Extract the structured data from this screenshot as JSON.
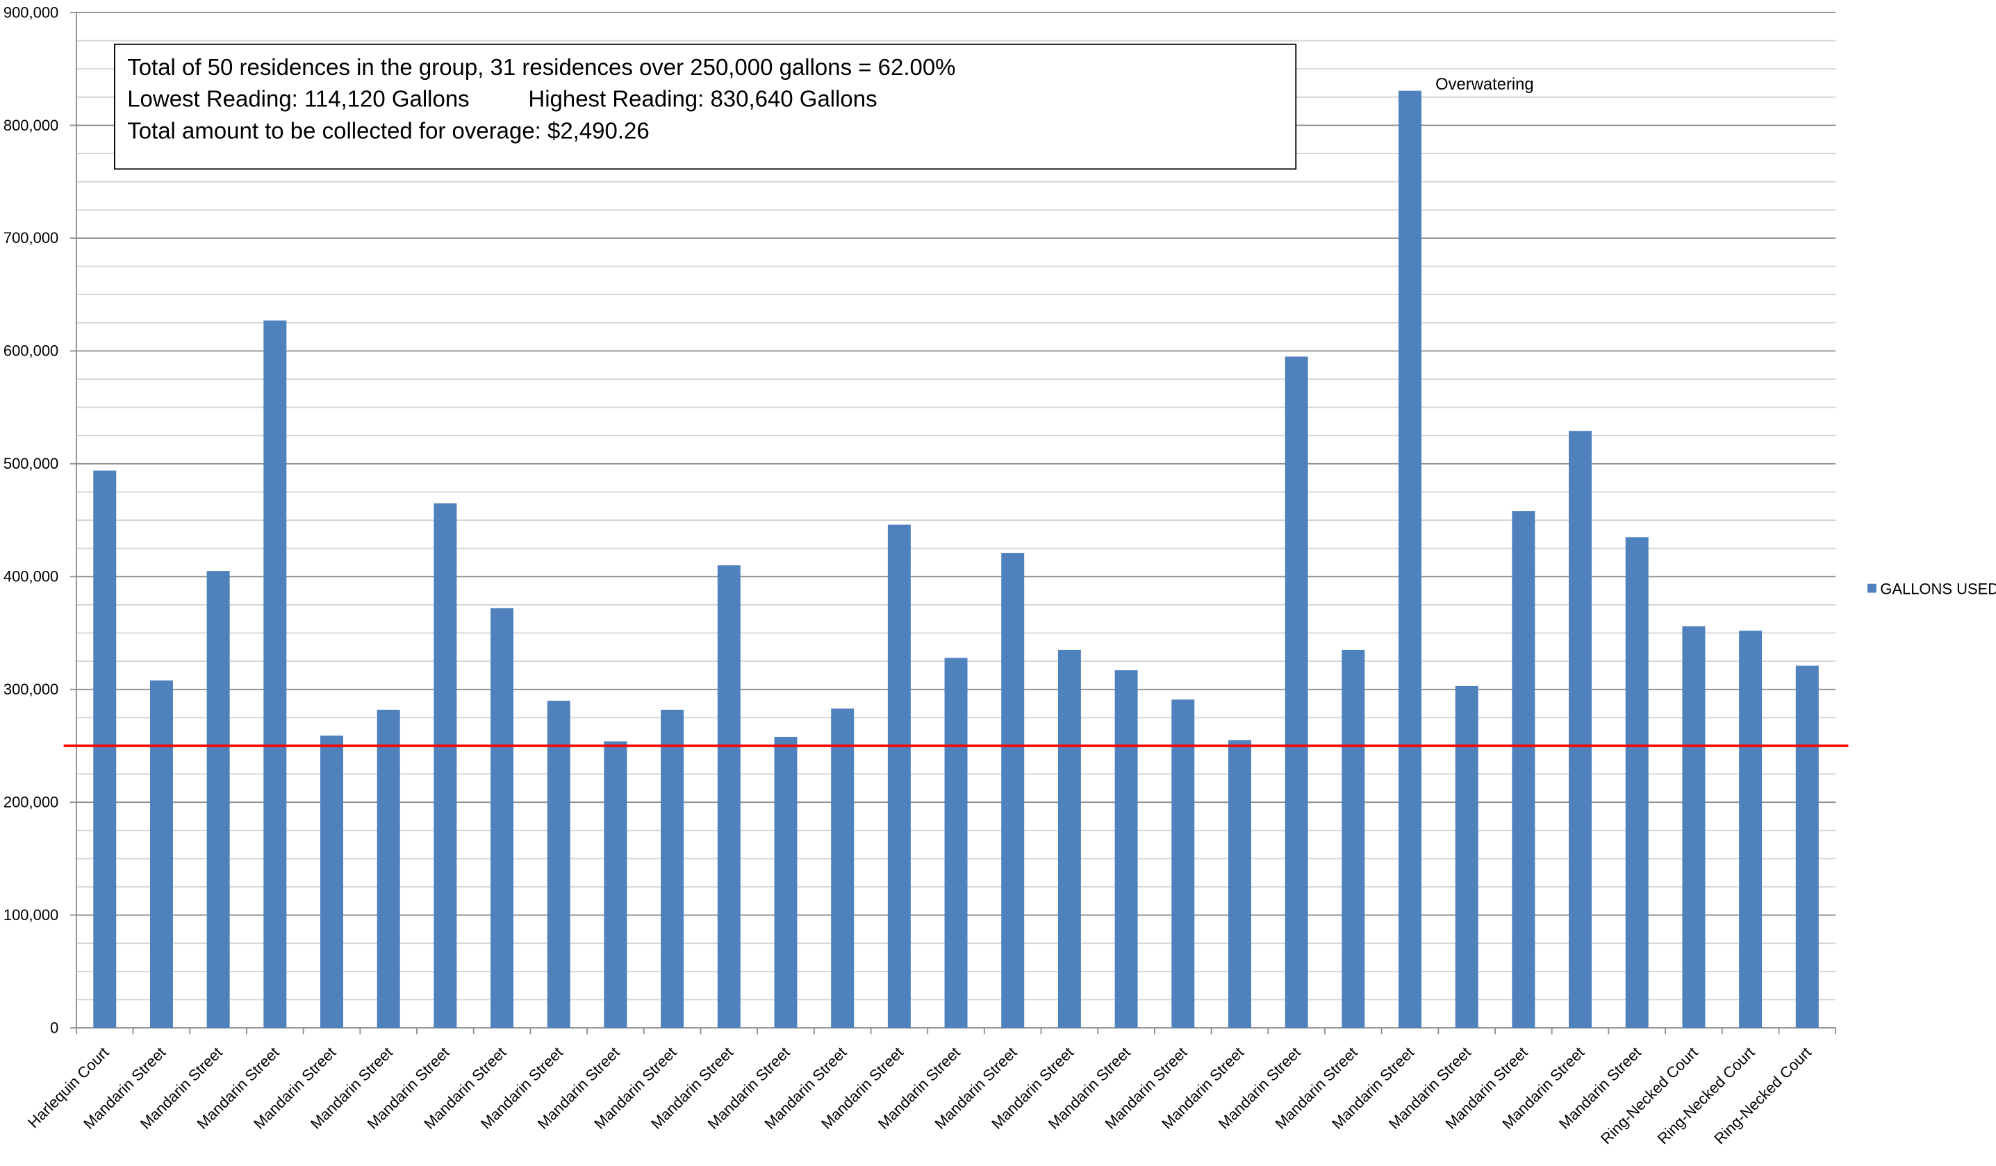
{
  "chart_data": {
    "type": "bar",
    "categories": [
      "Harlequin Court",
      "Mandarin Street",
      "Mandarin Street",
      "Mandarin Street",
      "Mandarin Street",
      "Mandarin Street",
      "Mandarin Street",
      "Mandarin Street",
      "Mandarin Street",
      "Mandarin Street",
      "Mandarin Street",
      "Mandarin Street",
      "Mandarin Street",
      "Mandarin Street",
      "Mandarin Street",
      "Mandarin Street",
      "Mandarin Street",
      "Mandarin Street",
      "Mandarin Street",
      "Mandarin Street",
      "Mandarin Street",
      "Mandarin Street",
      "Mandarin Street",
      "Mandarin Street",
      "Mandarin Street",
      "Mandarin Street",
      "Mandarin Street",
      "Mandarin Street",
      "Ring-Necked Court",
      "Ring-Necked Court",
      "Ring-Necked Court"
    ],
    "series": [
      {
        "name": "GALLONS USED",
        "color": "#4f81bd",
        "values": [
          494000,
          308000,
          405000,
          627000,
          259000,
          282000,
          465000,
          372000,
          290000,
          254000,
          282000,
          410000,
          258000,
          283000,
          446000,
          328000,
          421000,
          335000,
          317000,
          291000,
          255000,
          595000,
          335000,
          830640,
          303000,
          458000,
          529000,
          435000,
          356000,
          352000,
          321000
        ]
      }
    ],
    "ylim": [
      0,
      900000
    ],
    "yticks": [
      0,
      {
        "value": 100000,
        "label": "100,000"
      },
      {
        "value": 200000,
        "label": "200,000"
      },
      {
        "value": 300000,
        "label": "300,000"
      },
      {
        "value": 400000,
        "label": "400,000"
      },
      {
        "value": 500000,
        "label": "500,000"
      },
      {
        "value": 600000,
        "label": "600,000"
      },
      {
        "value": 700000,
        "label": "700,000"
      },
      {
        "value": 800000,
        "label": "800,000"
      },
      {
        "value": 900000,
        "label": "900,000"
      }
    ],
    "minor_yticks": [
      25000,
      50000,
      75000,
      125000,
      150000,
      175000,
      225000,
      250000,
      275000,
      325000,
      350000,
      375000,
      425000,
      450000,
      475000,
      525000,
      550000,
      575000,
      625000,
      650000,
      675000,
      725000,
      750000,
      775000,
      825000,
      850000,
      875000
    ],
    "grid": true,
    "threshold": {
      "value": 250000,
      "color": "#ff0000"
    },
    "legend": "right",
    "annotation": {
      "text": "Overwatering",
      "category_index": 23
    },
    "info_box": [
      "Total of 50 residences in the group, 31 residences over 250,000 gallons = 62.00%",
      "Lowest Reading: 114,120 Gallons",
      "Highest Reading: 830,640 Gallons",
      "Total amount to be collected for overage: $2,490.26"
    ]
  }
}
